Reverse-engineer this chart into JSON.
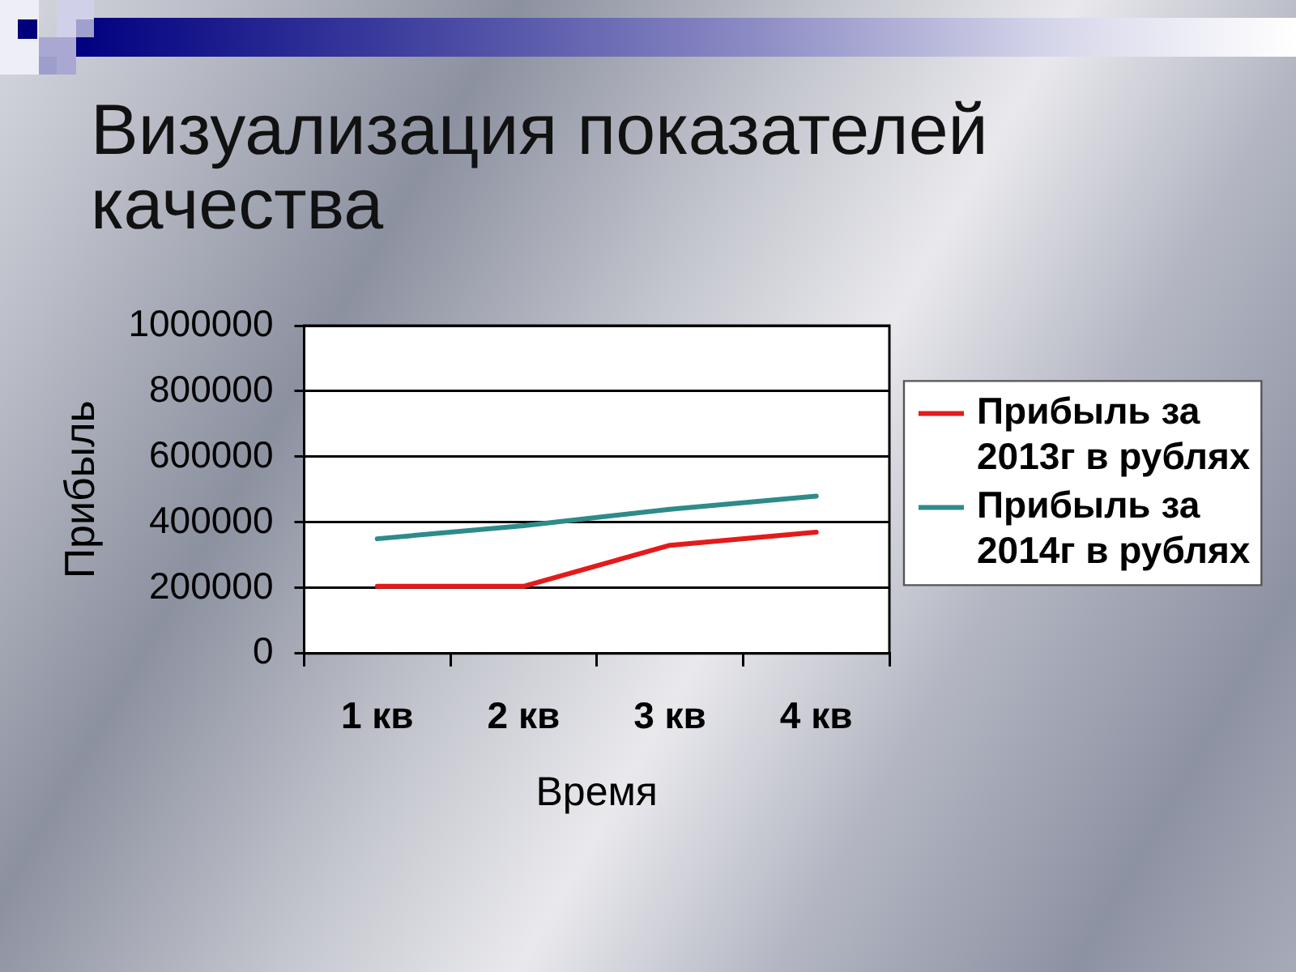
{
  "chart_data": {
    "type": "line",
    "title": "Визуализация показателей качества",
    "xlabel": "Время",
    "ylabel": "Прибыль",
    "categories": [
      "1 кв",
      "2 кв",
      "3 кв",
      "4 кв"
    ],
    "series": [
      {
        "name": "Прибыль за 2013г в рублях",
        "color": "#e31b1b",
        "values": [
          205000,
          205000,
          330000,
          370000
        ]
      },
      {
        "name": "Прибыль за 2014г в рублях",
        "color": "#2e8b8b",
        "values": [
          350000,
          390000,
          440000,
          480000
        ]
      }
    ],
    "ylim": [
      0,
      1000000
    ],
    "yticks": [
      0,
      200000,
      400000,
      600000,
      800000,
      1000000
    ],
    "grid": "y",
    "legend": "right",
    "marker": "none",
    "line_style": "solid"
  }
}
